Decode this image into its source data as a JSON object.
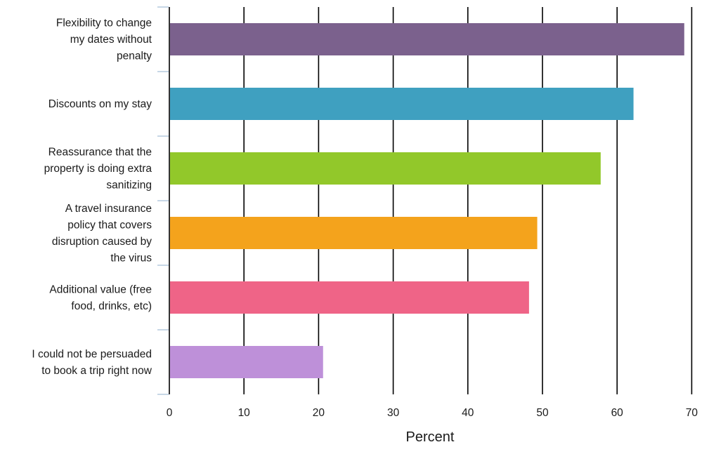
{
  "chart_data": {
    "type": "bar",
    "orientation": "horizontal",
    "categories": [
      [
        "Flexibility to change",
        "my dates without",
        "penalty"
      ],
      [
        "Discounts on my stay"
      ],
      [
        "Reassurance that the",
        "property is doing extra",
        "sanitizing"
      ],
      [
        "A travel insurance",
        "policy that covers",
        "disruption caused by",
        "the virus"
      ],
      [
        "Additional value (free",
        "food, drinks, etc)"
      ],
      [
        "I could not be persuaded",
        "to book a trip right now"
      ]
    ],
    "values": [
      69,
      62.2,
      57.8,
      49.3,
      48.2,
      20.6
    ],
    "colors": [
      "#7b618d",
      "#3fa0c0",
      "#92c82a",
      "#f4a31c",
      "#ef6487",
      "#be90d9"
    ],
    "xlabel": "Percent",
    "ylabel": "",
    "title": "",
    "xlim": [
      0,
      70
    ],
    "xticks": [
      "0",
      "10",
      "20",
      "30",
      "40",
      "50",
      "60",
      "70"
    ],
    "grid": "vertical"
  }
}
